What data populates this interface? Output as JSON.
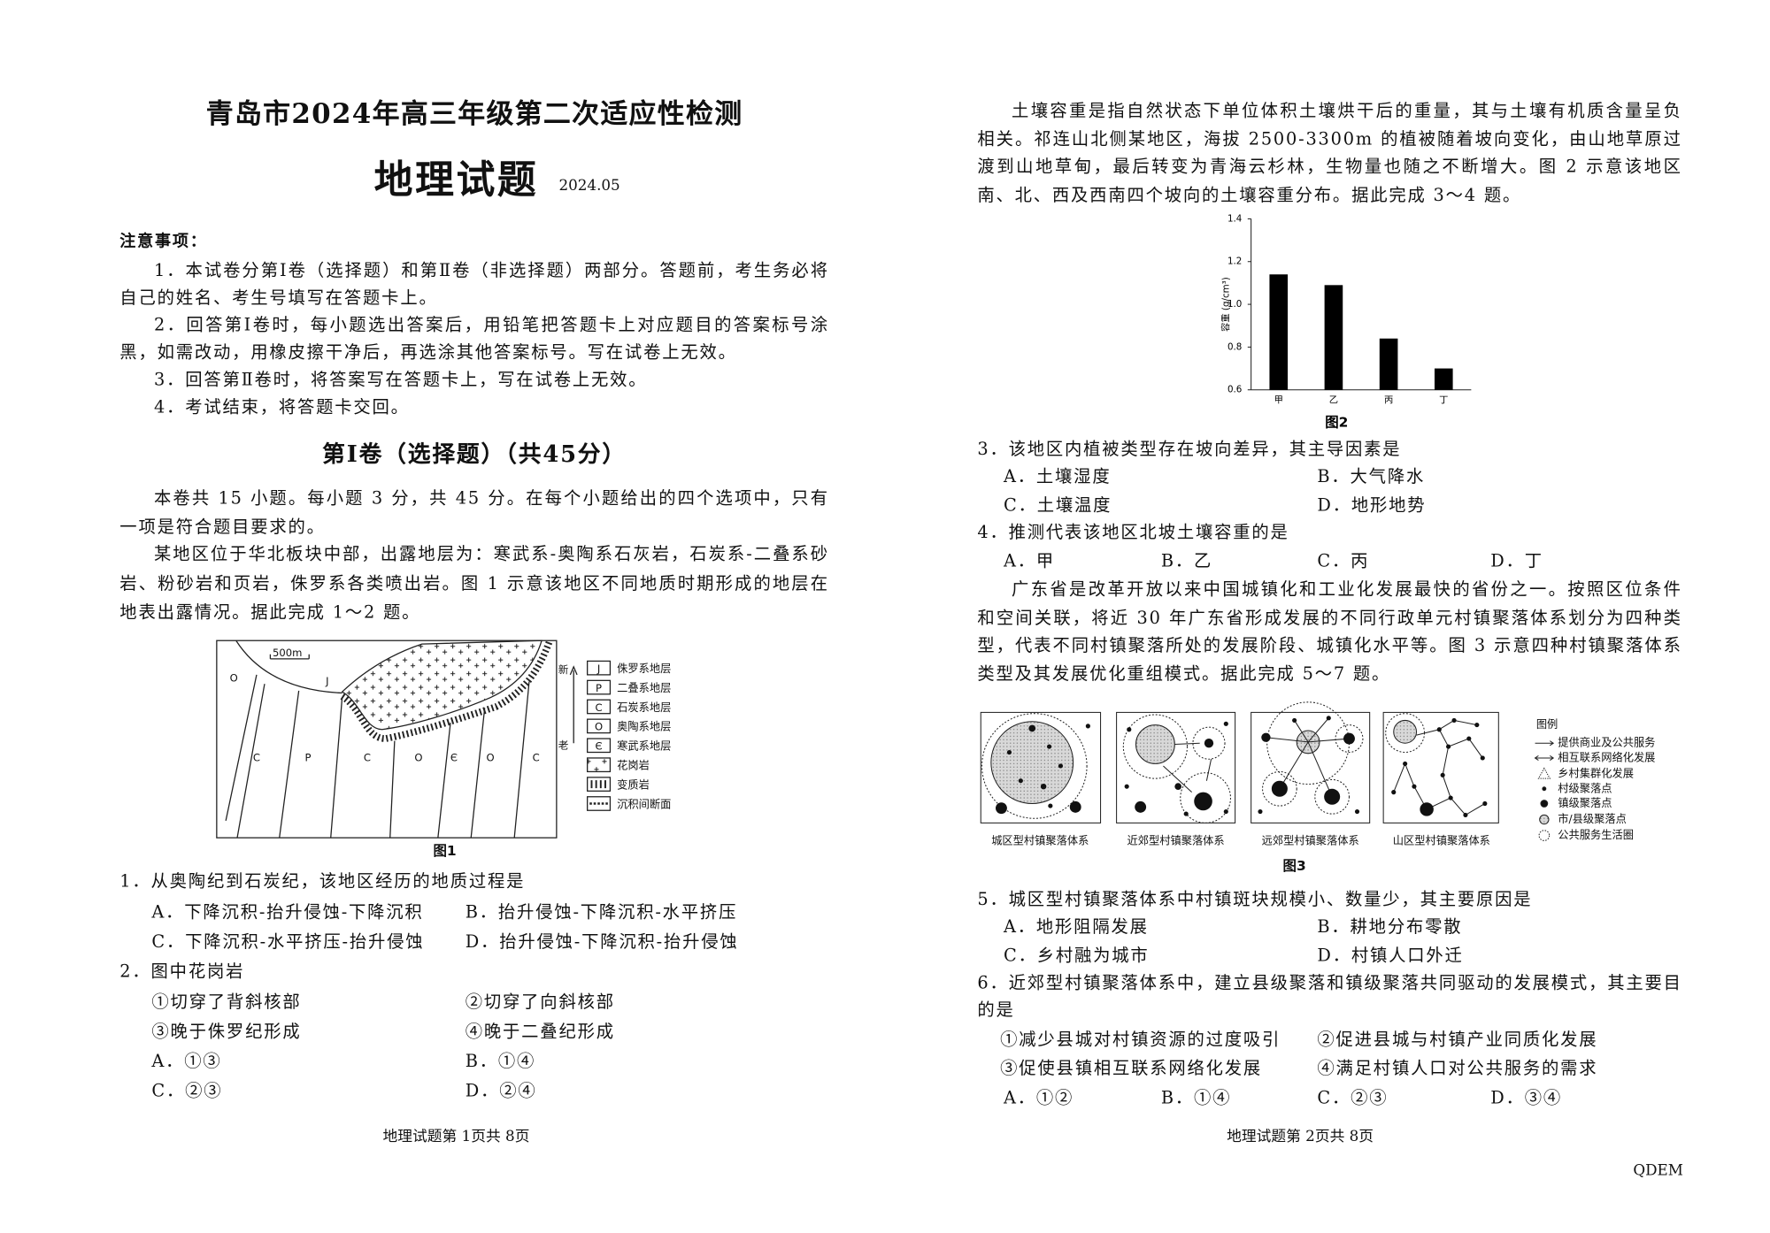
{
  "left_page": {
    "header": {
      "title": "青岛市2024年高三年级第二次适应性检测",
      "subject": "地理试题",
      "date": "2024.05"
    },
    "notice": {
      "heading": "注意事项：",
      "items": [
        "1．本试卷分第Ⅰ卷（选择题）和第Ⅱ卷（非选择题）两部分。答题前，考生务必将自己的姓名、考生号填写在答题卡上。",
        "2．回答第Ⅰ卷时，每小题选出答案后，用铅笔把答题卡上对应题目的答案标号涂黑，如需改动，用橡皮擦干净后，再选涂其他答案标号。写在试卷上无效。",
        "3．回答第Ⅱ卷时，将答案写在答题卡上，写在试卷上无效。",
        "4．考试结束，将答题卡交回。"
      ]
    },
    "section": {
      "title": "第Ⅰ卷（选择题）（共45分）",
      "intro": "本卷共 15 小题。每小题 3 分，共 45 分。在每个小题给出的四个选项中，只有一项是符合题目要求的。"
    },
    "passage": "某地区位于华北板块中部，出露地层为：寒武系-奥陶系石灰岩，石炭系-二叠系砂岩、粉砂岩和页岩，侏罗系各类喷出岩。图 1 示意该地区不同地质时期形成的地层在地表出露情况。据此完成 1～2 题。",
    "figure_1": {
      "scale": "500m",
      "map_labels": [
        "O",
        "J",
        "C",
        "P",
        "C",
        "O",
        "Є",
        "O",
        "C"
      ],
      "legend_newer": "新",
      "legend_older": "老",
      "legend": [
        {
          "symbol": "J",
          "name": "侏罗系地层"
        },
        {
          "symbol": "P",
          "name": "二叠系地层"
        },
        {
          "symbol": "C",
          "name": "石炭系地层"
        },
        {
          "symbol": "O",
          "name": "奥陶系地层"
        },
        {
          "symbol": "Є",
          "name": "寒武系地层"
        },
        {
          "name": "花岗岩"
        },
        {
          "name": "变质岩"
        },
        {
          "name": "沉积间断面"
        }
      ],
      "caption": "图1"
    },
    "questions": [
      {
        "stem": "1．从奥陶纪到石炭纪，该地区经历的地质过程是",
        "options": [
          "A．下降沉积-抬升侵蚀-下降沉积",
          "B．抬升侵蚀-下降沉积-水平挤压",
          "C．下降沉积-水平挤压-抬升侵蚀",
          "D．抬升侵蚀-下降沉积-抬升侵蚀"
        ]
      },
      {
        "stem": "2．图中花岗岩",
        "statements": [
          "①切穿了背斜核部",
          "②切穿了向斜核部",
          "③晚于侏罗纪形成",
          "④晚于二叠纪形成"
        ],
        "options": [
          "A．①③",
          "B．①④",
          "C．②③",
          "D．②④"
        ]
      }
    ],
    "footer": "地理试题第 1页共 8页"
  },
  "chart_data": {
    "type": "bar",
    "y_label": "容重 (g/cm³)",
    "categories": [
      "甲",
      "乙",
      "丙",
      "丁"
    ],
    "values": [
      1.14,
      1.09,
      0.84,
      0.7
    ],
    "color": "#000000",
    "ylim": [
      0.6,
      1.4
    ],
    "yticks": [
      0.6,
      0.8,
      {
        "value": 1,
        "label": "1.0"
      },
      1.2,
      1.4
    ],
    "caption": "图2"
  },
  "right_page": {
    "passage_1": "土壤容重是指自然状态下单位体积土壤烘干后的重量，其与土壤有机质含量呈负相关。祁连山北侧某地区，海拔 2500-3300m 的植被随着坡向变化，由山地草原过渡到山地草甸，最后转变为青海云杉林，生物量也随之不断增大。图 2 示意该地区南、北、西及西南四个坡向的土壤容重分布。据此完成 3～4 题。",
    "questions_a": [
      {
        "stem": "3．该地区内植被类型存在坡向差异，其主导因素是",
        "options": [
          "A．土壤湿度",
          "B．大气降水",
          "C．土壤温度",
          "D．地形地势"
        ]
      },
      {
        "stem": "4．推测代表该地区北坡土壤容重的是",
        "options": [
          "A．甲",
          "B．乙",
          "C．丙",
          "D．丁"
        ]
      }
    ],
    "passage_2": "广东省是改革开放以来中国城镇化和工业化发展最快的省份之一。按照区位条件和空间关联，将近 30 年广东省形成发展的不同行政单元村镇聚落体系划分为四种类型，代表不同村镇聚落所处的发展阶段、城镇化水平等。图 3 示意四种村镇聚落体系类型及其发展优化重组模式。据此完成 5～7 题。",
    "figure_3": {
      "panels": [
        "城区型村镇聚落体系",
        "近郊型村镇聚落体系",
        "远郊型村镇聚落体系",
        "山区型村镇聚落体系"
      ],
      "legend_heading": "图例",
      "legend": [
        "提供商业及公共服务",
        "相互联系网络化发展",
        "乡村集群化发展",
        "村级聚落点",
        "镇级聚落点",
        "市/县级聚落点",
        "公共服务生活圈"
      ],
      "caption": "图3"
    },
    "questions_b": [
      {
        "stem": "5．城区型村镇聚落体系中村镇斑块规模小、数量少，其主要原因是",
        "options": [
          "A．地形阻隔发展",
          "B．耕地分布零散",
          "C．乡村融为城市",
          "D．村镇人口外迁"
        ]
      },
      {
        "stem": "6．近郊型村镇聚落体系中，建立县级聚落和镇级聚落共同驱动的发展模式，其主要目的是",
        "statements": [
          "①减少县城对村镇资源的过度吸引",
          "②促进县城与村镇产业同质化发展",
          "③促使县镇相互联系网络化发展",
          "④满足村镇人口对公共服务的需求"
        ],
        "options": [
          "A．①②",
          "B．①④",
          "C．②③",
          "D．③④"
        ]
      }
    ],
    "footer": "地理试题第 2页共 8页",
    "code": "QDEM"
  }
}
